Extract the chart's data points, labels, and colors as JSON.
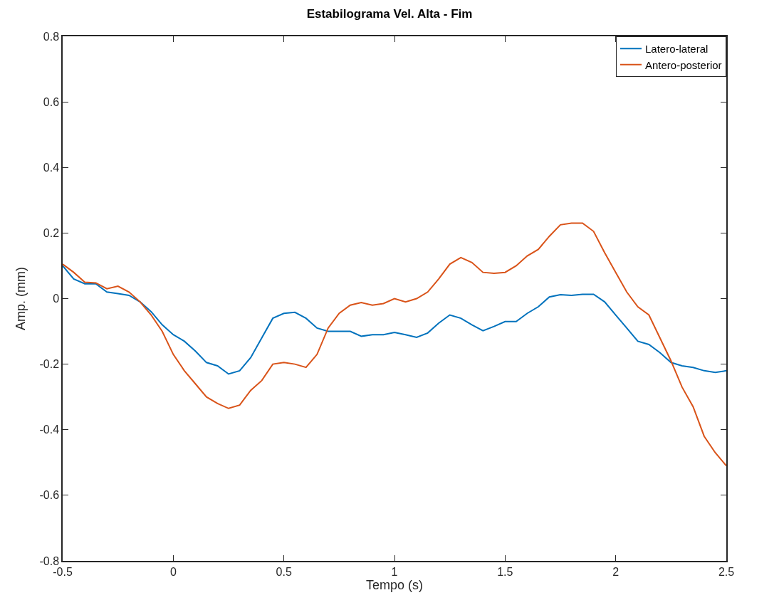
{
  "chart_data": {
    "type": "line",
    "title": "Estabilograma Vel. Alta - Fim",
    "xlabel": "Tempo (s)",
    "ylabel": "Amp. (mm)",
    "x": [
      -0.5,
      -0.45,
      -0.4,
      -0.35,
      -0.3,
      -0.25,
      -0.2,
      -0.15,
      -0.1,
      -0.05,
      0,
      0.05,
      0.1,
      0.15,
      0.2,
      0.25,
      0.3,
      0.35,
      0.4,
      0.45,
      0.5,
      0.55,
      0.6,
      0.65,
      0.7,
      0.75,
      0.8,
      0.85,
      0.9,
      0.95,
      1.0,
      1.05,
      1.1,
      1.15,
      1.2,
      1.25,
      1.3,
      1.35,
      1.4,
      1.45,
      1.5,
      1.55,
      1.6,
      1.65,
      1.7,
      1.75,
      1.8,
      1.85,
      1.9,
      1.95,
      2.0,
      2.05,
      2.1,
      2.15,
      2.2,
      2.25,
      2.3,
      2.35,
      2.4,
      2.45,
      2.5
    ],
    "series": [
      {
        "name": "Latero-lateral",
        "color": "#0072bd",
        "values": [
          0.1,
          0.06,
          0.045,
          0.045,
          0.02,
          0.015,
          0.01,
          -0.01,
          -0.04,
          -0.08,
          -0.11,
          -0.13,
          -0.16,
          -0.195,
          -0.205,
          -0.23,
          -0.22,
          -0.18,
          -0.12,
          -0.06,
          -0.045,
          -0.042,
          -0.06,
          -0.09,
          -0.1,
          -0.1,
          -0.1,
          -0.115,
          -0.11,
          -0.11,
          -0.103,
          -0.11,
          -0.118,
          -0.105,
          -0.075,
          -0.05,
          -0.06,
          -0.08,
          -0.098,
          -0.085,
          -0.07,
          -0.07,
          -0.045,
          -0.025,
          0.005,
          0.012,
          0.01,
          0.013,
          0.013,
          -0.01,
          -0.05,
          -0.09,
          -0.13,
          -0.14,
          -0.165,
          -0.195,
          -0.205,
          -0.21,
          -0.22,
          -0.225,
          -0.22
        ]
      },
      {
        "name": "Antero-posterior",
        "color": "#d95319",
        "values": [
          0.105,
          0.08,
          0.05,
          0.048,
          0.03,
          0.038,
          0.02,
          -0.01,
          -0.05,
          -0.1,
          -0.17,
          -0.22,
          -0.26,
          -0.3,
          -0.32,
          -0.335,
          -0.325,
          -0.28,
          -0.25,
          -0.2,
          -0.195,
          -0.2,
          -0.21,
          -0.17,
          -0.09,
          -0.045,
          -0.02,
          -0.012,
          -0.02,
          -0.015,
          0.0,
          -0.01,
          0.0,
          0.02,
          0.06,
          0.105,
          0.125,
          0.11,
          0.08,
          0.077,
          0.08,
          0.1,
          0.13,
          0.15,
          0.19,
          0.225,
          0.23,
          0.23,
          0.205,
          0.14,
          0.08,
          0.02,
          -0.025,
          -0.05,
          -0.12,
          -0.19,
          -0.27,
          -0.33,
          -0.42,
          -0.47,
          -0.51
        ]
      }
    ],
    "xlim": [
      -0.5,
      2.5
    ],
    "xticks": [
      {
        "value": -0.5,
        "label": "-0.5"
      },
      0,
      0.5,
      1,
      1.5,
      2,
      2.5
    ],
    "ylim": [
      -0.8,
      0.8
    ],
    "yticks": [
      -0.8,
      -0.6,
      -0.4,
      -0.2,
      0,
      0.2,
      0.4,
      0.6,
      0.8
    ],
    "legend": "top right",
    "line_style": "solid"
  }
}
